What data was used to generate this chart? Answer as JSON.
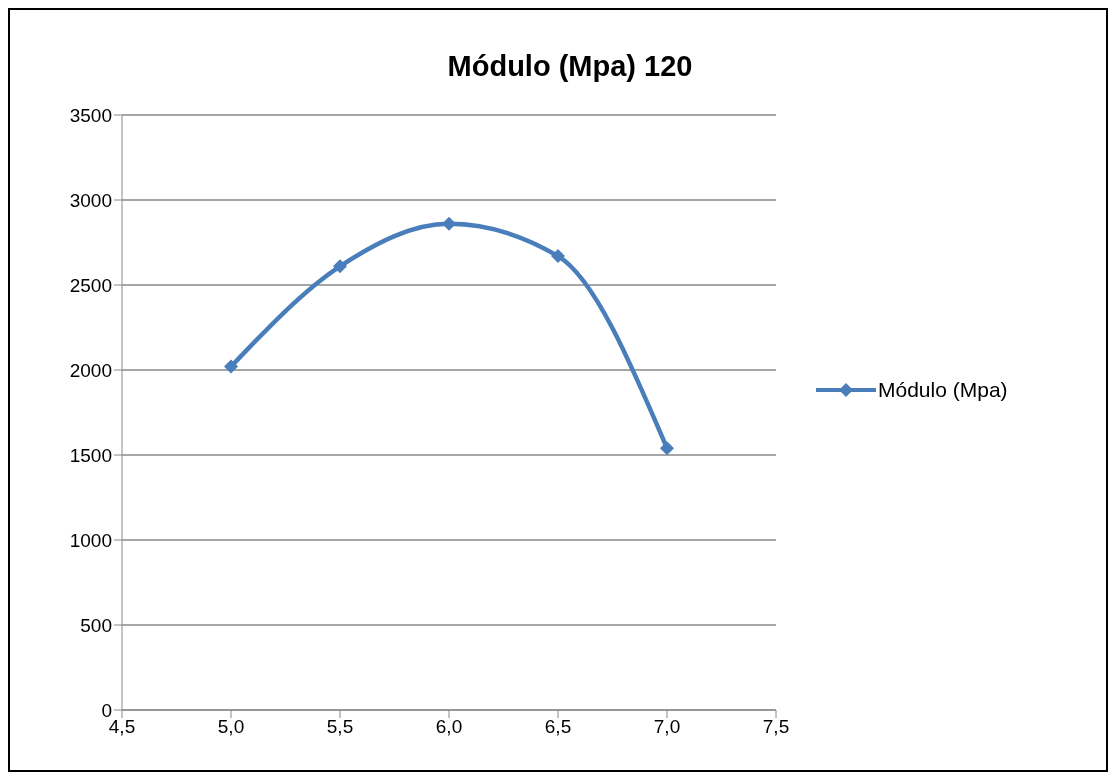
{
  "chart_data": {
    "type": "line",
    "title": "Módulo (Mpa) 120",
    "x": [
      5.0,
      5.5,
      6.0,
      6.5,
      7.0
    ],
    "series": [
      {
        "name": "Módulo (Mpa)",
        "color": "#4a7ebb",
        "values": [
          2020,
          2610,
          2860,
          2670,
          1540
        ]
      }
    ],
    "xlim": [
      4.5,
      7.5
    ],
    "xticks": [
      {
        "value": 4.5,
        "label": "4,5"
      },
      {
        "value": 5.0,
        "label": "5,0"
      },
      {
        "value": 5.5,
        "label": "5,5"
      },
      {
        "value": 6.0,
        "label": "6,0"
      },
      {
        "value": 6.5,
        "label": "6,5"
      },
      {
        "value": 7.0,
        "label": "7,0"
      },
      {
        "value": 7.5,
        "label": "7,5"
      }
    ],
    "ylim": [
      0,
      3500
    ],
    "yticks": [
      0,
      500,
      1000,
      1500,
      2000,
      2500,
      3000,
      3500
    ],
    "grid": "y",
    "legend": "right",
    "marker": "diamond",
    "line_style": "solid"
  }
}
